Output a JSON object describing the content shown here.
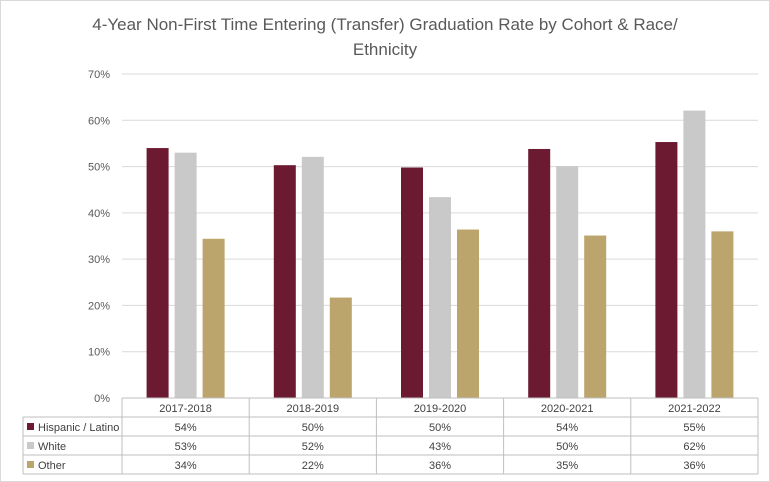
{
  "chart_data": {
    "type": "bar",
    "title_line1": "4-Year Non-First Time Entering (Transfer) Graduation Rate by Cohort & Race/",
    "title_line2": "Ethnicity",
    "categories": [
      "2017-2018",
      "2018-2019",
      "2019-2020",
      "2020-2021",
      "2021-2022"
    ],
    "series": [
      {
        "name": "Hispanic / Latino",
        "color": "#6b1a32",
        "values": [
          54.0,
          50.3,
          49.8,
          53.8,
          55.3
        ],
        "labels": [
          "54%",
          "50%",
          "50%",
          "54%",
          "55%"
        ]
      },
      {
        "name": "White",
        "color": "#c9c9c9",
        "values": [
          53.0,
          52.1,
          43.4,
          50.1,
          62.1
        ],
        "labels": [
          "53%",
          "52%",
          "43%",
          "50%",
          "62%"
        ]
      },
      {
        "name": "Other",
        "color": "#bba56c",
        "values": [
          34.4,
          21.7,
          36.4,
          35.1,
          36.0
        ],
        "labels": [
          "34%",
          "22%",
          "36%",
          "35%",
          "36%"
        ]
      }
    ],
    "ylim": [
      0,
      70
    ],
    "yticks": [
      0,
      10,
      20,
      30,
      40,
      50,
      60,
      70
    ],
    "ytick_labels": [
      "0%",
      "10%",
      "20%",
      "30%",
      "40%",
      "50%",
      "60%",
      "70%"
    ],
    "grid": true,
    "legend": "data-table",
    "xlabel": "",
    "ylabel": ""
  }
}
